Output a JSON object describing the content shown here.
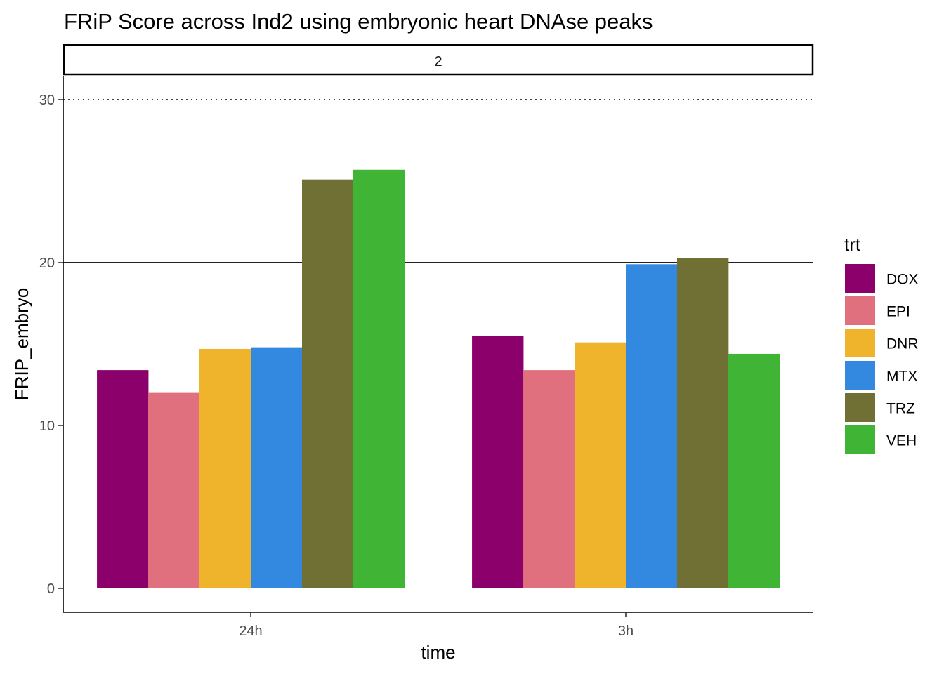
{
  "chart_data": {
    "type": "bar",
    "title": "FRiP Score across Ind2 using embryonic heart DNAse peaks",
    "facet_label": "2",
    "xlabel": "time",
    "ylabel": "FRIP_embryo",
    "categories": [
      "24h",
      "3h"
    ],
    "y_ticks": [
      0,
      10,
      20,
      30
    ],
    "ylim": [
      -1.4,
      31.6
    ],
    "reference_lines": [
      {
        "value": 30,
        "style": "dotted"
      },
      {
        "value": 20,
        "style": "solid"
      }
    ],
    "legend_title": "trt",
    "legend_position": "right",
    "grid": false,
    "series": [
      {
        "name": "DOX",
        "color": "#8B006B",
        "values": [
          13.4,
          15.5
        ]
      },
      {
        "name": "EPI",
        "color": "#E0707E",
        "values": [
          12.0,
          13.4
        ]
      },
      {
        "name": "DNR",
        "color": "#F0B42C",
        "values": [
          14.7,
          15.1
        ]
      },
      {
        "name": "MTX",
        "color": "#3388E0",
        "values": [
          14.8,
          19.9
        ]
      },
      {
        "name": "TRZ",
        "color": "#707035",
        "values": [
          25.1,
          20.3
        ]
      },
      {
        "name": "VEH",
        "color": "#40B435",
        "values": [
          25.7,
          14.4
        ]
      }
    ]
  }
}
